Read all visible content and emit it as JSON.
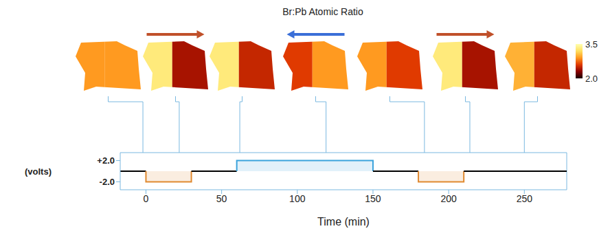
{
  "chart_data": {
    "type": "step",
    "title": "Br:Pb Atomic Ratio",
    "x_label": "Time (min)",
    "y_label": "(volts)",
    "segments": [
      {
        "start": -17,
        "end": 0,
        "volts": 0,
        "color": "#000000"
      },
      {
        "start": 0,
        "end": 30,
        "volts": -2,
        "color": "#e0892f"
      },
      {
        "start": 30,
        "end": 60,
        "volts": 0,
        "color": "#000000"
      },
      {
        "start": 60,
        "end": 150,
        "volts": 2,
        "color": "#3ba3dc"
      },
      {
        "start": 150,
        "end": 180,
        "volts": 0,
        "color": "#000000"
      },
      {
        "start": 180,
        "end": 210,
        "volts": -2,
        "color": "#e0892f"
      },
      {
        "start": 210,
        "end": 278,
        "volts": 0,
        "color": "#000000"
      }
    ],
    "xlim": [
      -17,
      278
    ],
    "xticks": [
      0,
      50,
      100,
      150,
      200,
      250
    ],
    "ylim": [
      -3.5,
      3.5
    ],
    "yticks": [
      {
        "value": 2,
        "label": "+2.0"
      },
      {
        "value": -2,
        "label": "-2.0"
      }
    ],
    "maps": [
      {
        "time": -2,
        "left_ratio": 2.9,
        "right_ratio": 2.9
      },
      {
        "time": 22,
        "left_ratio": 3.3,
        "right_ratio": 2.4
      },
      {
        "time": 62,
        "left_ratio": 3.3,
        "right_ratio": 2.5
      },
      {
        "time": 119,
        "left_ratio": 2.6,
        "right_ratio": 2.9
      },
      {
        "time": 184,
        "left_ratio": 2.9,
        "right_ratio": 2.6
      },
      {
        "time": 214,
        "left_ratio": 3.3,
        "right_ratio": 2.4
      },
      {
        "time": 250,
        "left_ratio": 3.0,
        "right_ratio": 2.5
      }
    ],
    "colorbar": {
      "range": [
        2.0,
        3.5
      ],
      "ticks": [
        {
          "value": 3.5,
          "label": "3.5"
        },
        {
          "value": 2,
          "label": "2.0"
        }
      ],
      "colors": [
        "#1a0000",
        "#8b0000",
        "#e03a00",
        "#ff9a20",
        "#ffe060",
        "#ffffb0"
      ]
    }
  }
}
